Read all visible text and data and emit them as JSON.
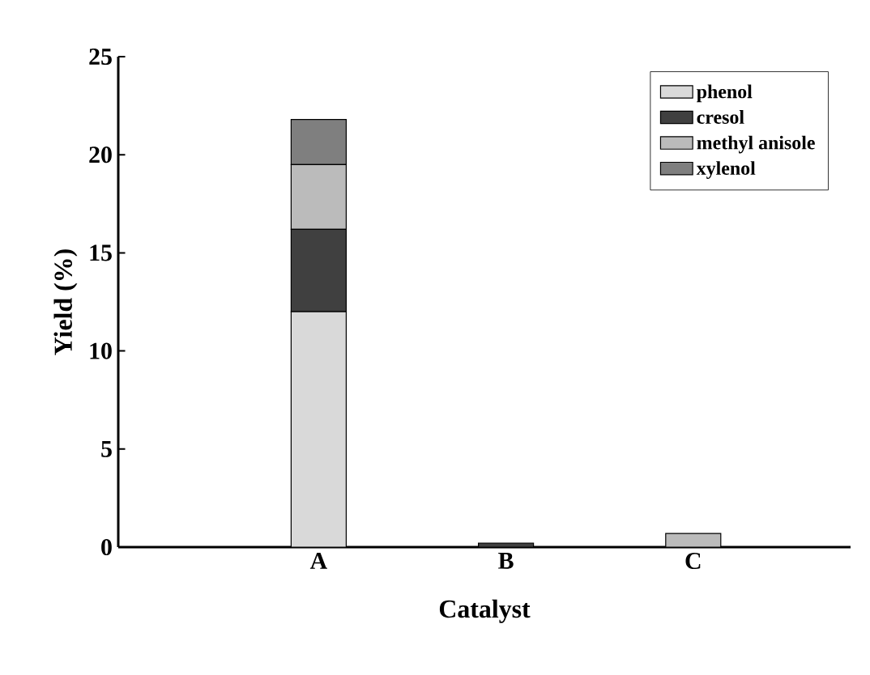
{
  "chart_data": {
    "type": "bar",
    "stacked": true,
    "xlabel": "Catalyst",
    "ylabel": "Yield (%)",
    "categories": [
      "A",
      "B",
      "C"
    ],
    "series": [
      {
        "name": "phenol",
        "color": "#d9d9d9",
        "values": [
          12,
          0,
          0
        ]
      },
      {
        "name": "cresol",
        "color": "#404040",
        "values": [
          4.2,
          0.2,
          0
        ]
      },
      {
        "name": "methyl anisole",
        "color": "#bbbbbb",
        "values": [
          3.3,
          0,
          0.7
        ]
      },
      {
        "name": "xylenol",
        "color": "#7f7f7f",
        "values": [
          2.3,
          0,
          0
        ]
      }
    ],
    "ylim": [
      0,
      25
    ],
    "yticks": [
      0,
      5,
      10,
      15,
      20,
      25
    ],
    "legend": "top right",
    "grid": false
  }
}
